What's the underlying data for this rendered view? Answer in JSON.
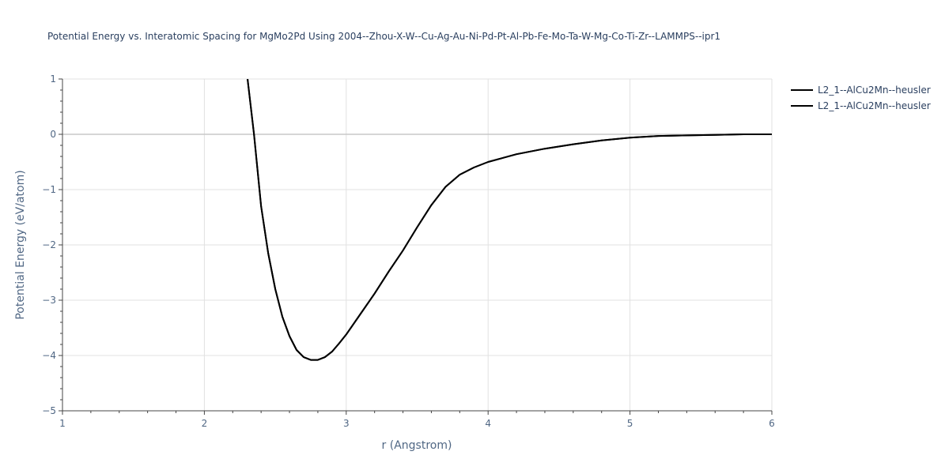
{
  "chart_data": {
    "type": "line",
    "title": "Potential Energy vs. Interatomic Spacing for MgMo2Pd Using 2004--Zhou-X-W--Cu-Ag-Au-Ni-Pd-Pt-Al-Pb-Fe-Mo-Ta-W-Mg-Co-Ti-Zr--LAMMPS--ipr1",
    "xlabel": "r (Angstrom)",
    "ylabel": "Potential Energy (eV/atom)",
    "xlim": [
      1,
      6
    ],
    "ylim": [
      -5,
      1
    ],
    "x_ticks": [
      1,
      2,
      3,
      4,
      5,
      6
    ],
    "x_tick_labels": [
      "1",
      "2",
      "3",
      "4",
      "5",
      "6"
    ],
    "y_ticks": [
      -5,
      -4,
      -3,
      -2,
      -1,
      0,
      1
    ],
    "y_tick_labels": [
      "−5",
      "−4",
      "−3",
      "−2",
      "−1",
      "0",
      "1"
    ],
    "grid": true,
    "legend_position": "top-right",
    "series": [
      {
        "name": "L2_1--AlCu2Mn--heusler",
        "color": "#000000",
        "x": [
          2.3,
          2.35,
          2.4,
          2.45,
          2.5,
          2.55,
          2.6,
          2.65,
          2.7,
          2.75,
          2.8,
          2.85,
          2.9,
          2.95,
          3.0,
          3.1,
          3.2,
          3.3,
          3.4,
          3.5,
          3.6,
          3.7,
          3.8,
          3.9,
          4.0,
          4.2,
          4.4,
          4.6,
          4.8,
          5.0,
          5.2,
          5.4,
          5.6,
          5.8,
          6.0
        ],
        "y": [
          1.1,
          0.0,
          -1.3,
          -2.15,
          -2.8,
          -3.3,
          -3.65,
          -3.9,
          -4.03,
          -4.08,
          -4.08,
          -4.03,
          -3.93,
          -3.78,
          -3.62,
          -3.25,
          -2.88,
          -2.48,
          -2.1,
          -1.68,
          -1.28,
          -0.95,
          -0.73,
          -0.6,
          -0.5,
          -0.36,
          -0.26,
          -0.18,
          -0.11,
          -0.06,
          -0.03,
          -0.02,
          -0.01,
          0.0,
          0.0
        ]
      },
      {
        "name": "L2_1--AlCu2Mn--heusler",
        "color": "#000000",
        "x": [
          2.3,
          2.35,
          2.4,
          2.45,
          2.5,
          2.55,
          2.6,
          2.65,
          2.7,
          2.75,
          2.8,
          2.85,
          2.9,
          2.95,
          3.0,
          3.1,
          3.2,
          3.3,
          3.4,
          3.5,
          3.6,
          3.7,
          3.8,
          3.9,
          4.0,
          4.2,
          4.4,
          4.6,
          4.8,
          5.0,
          5.2,
          5.4,
          5.6,
          5.8,
          6.0
        ],
        "y": [
          1.1,
          0.0,
          -1.3,
          -2.15,
          -2.8,
          -3.3,
          -3.65,
          -3.9,
          -4.03,
          -4.08,
          -4.08,
          -4.03,
          -3.93,
          -3.78,
          -3.62,
          -3.25,
          -2.88,
          -2.48,
          -2.1,
          -1.68,
          -1.28,
          -0.95,
          -0.73,
          -0.6,
          -0.5,
          -0.36,
          -0.26,
          -0.18,
          -0.11,
          -0.06,
          -0.03,
          -0.02,
          -0.01,
          0.0,
          0.0
        ]
      }
    ]
  }
}
